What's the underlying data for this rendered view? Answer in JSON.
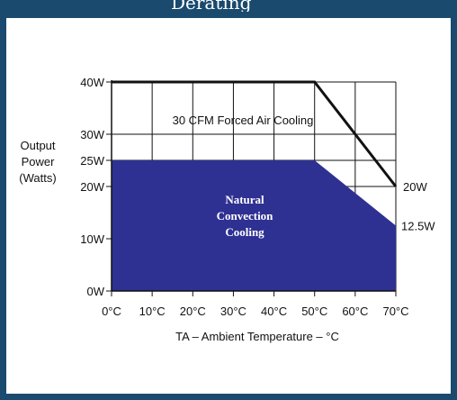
{
  "title_fragment": "Derating",
  "chart_data": {
    "type": "area",
    "x_tick_labels": [
      "0°C",
      "10°C",
      "20°C",
      "30°C",
      "40°C",
      "50°C",
      "60°C",
      "70°C"
    ],
    "y_tick_labels": [
      {
        "value": 0,
        "label": "0W"
      },
      {
        "value": 10,
        "label": "10W"
      },
      {
        "value": 20,
        "label": "20W"
      },
      {
        "value": 25,
        "label": "25W"
      },
      {
        "value": 30,
        "label": "30W"
      },
      {
        "value": 40,
        "label": "40W"
      }
    ],
    "xlim": [
      0,
      70
    ],
    "ylim": [
      0,
      40
    ],
    "xlabel": "TA – Ambient Temperature – °C",
    "ylabel": [
      "Output",
      "Power",
      "(Watts)"
    ],
    "series": [
      {
        "name": "30 CFM Forced Air Cooling",
        "kind": "line",
        "points": [
          [
            0,
            40
          ],
          [
            50,
            40
          ],
          [
            70,
            20
          ]
        ],
        "color": "#111111"
      },
      {
        "name": "Natural Convection Cooling",
        "name_lines": [
          "Natural",
          "Convection",
          "Cooling"
        ],
        "kind": "area",
        "points": [
          [
            0,
            25
          ],
          [
            50,
            25
          ],
          [
            70,
            12.5
          ]
        ],
        "color": "#2e3192"
      }
    ],
    "end_labels": [
      "20W",
      "12.5W"
    ],
    "grid": true
  }
}
